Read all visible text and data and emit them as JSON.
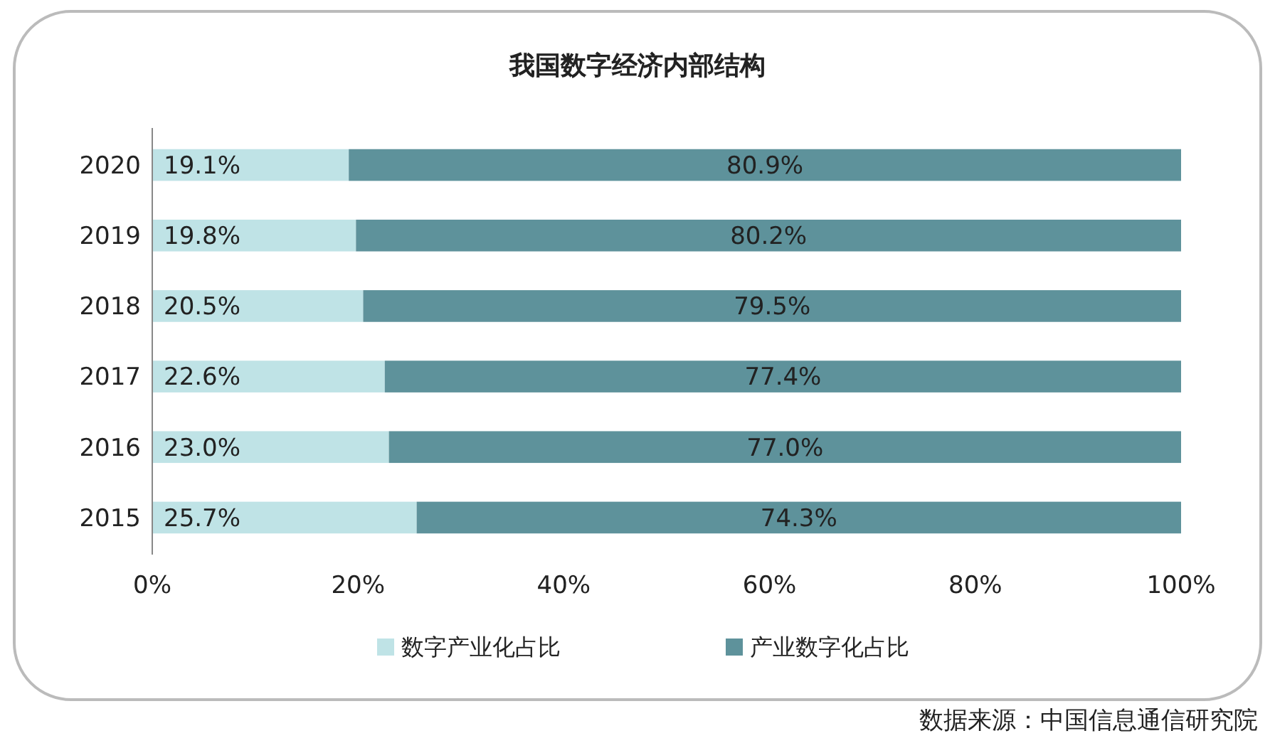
{
  "chart_data": {
    "type": "bar",
    "orientation": "horizontal",
    "stacked": true,
    "title": "我国数字经济内部结构",
    "categories": [
      "2020",
      "2019",
      "2018",
      "2017",
      "2016",
      "2015"
    ],
    "series": [
      {
        "name": "数字产业化占比",
        "color": "#bfe3e6",
        "values": [
          19.1,
          19.8,
          20.5,
          22.6,
          23.0,
          25.7
        ],
        "value_labels": [
          "19.1%",
          "19.8%",
          "20.5%",
          "22.6%",
          "23.0%",
          "25.7%"
        ]
      },
      {
        "name": "产业数字化占比",
        "color": "#5e929b",
        "values": [
          80.9,
          80.2,
          79.5,
          77.4,
          77.0,
          74.3
        ],
        "value_labels": [
          "80.9%",
          "80.2%",
          "79.5%",
          "77.4%",
          "77.0%",
          "74.3%"
        ]
      }
    ],
    "xlim": [
      0,
      100
    ],
    "xticks": [
      {
        "value": 0,
        "label": "0%"
      },
      {
        "value": 20,
        "label": "20%"
      },
      {
        "value": 40,
        "label": "40%"
      },
      {
        "value": 60,
        "label": "60%"
      },
      {
        "value": 80,
        "label": "80%"
      },
      {
        "value": 100,
        "label": "100%"
      }
    ],
    "grid": false,
    "legend": "bottom",
    "annotations": [
      "数据来源：中国信息通信研究院"
    ]
  }
}
